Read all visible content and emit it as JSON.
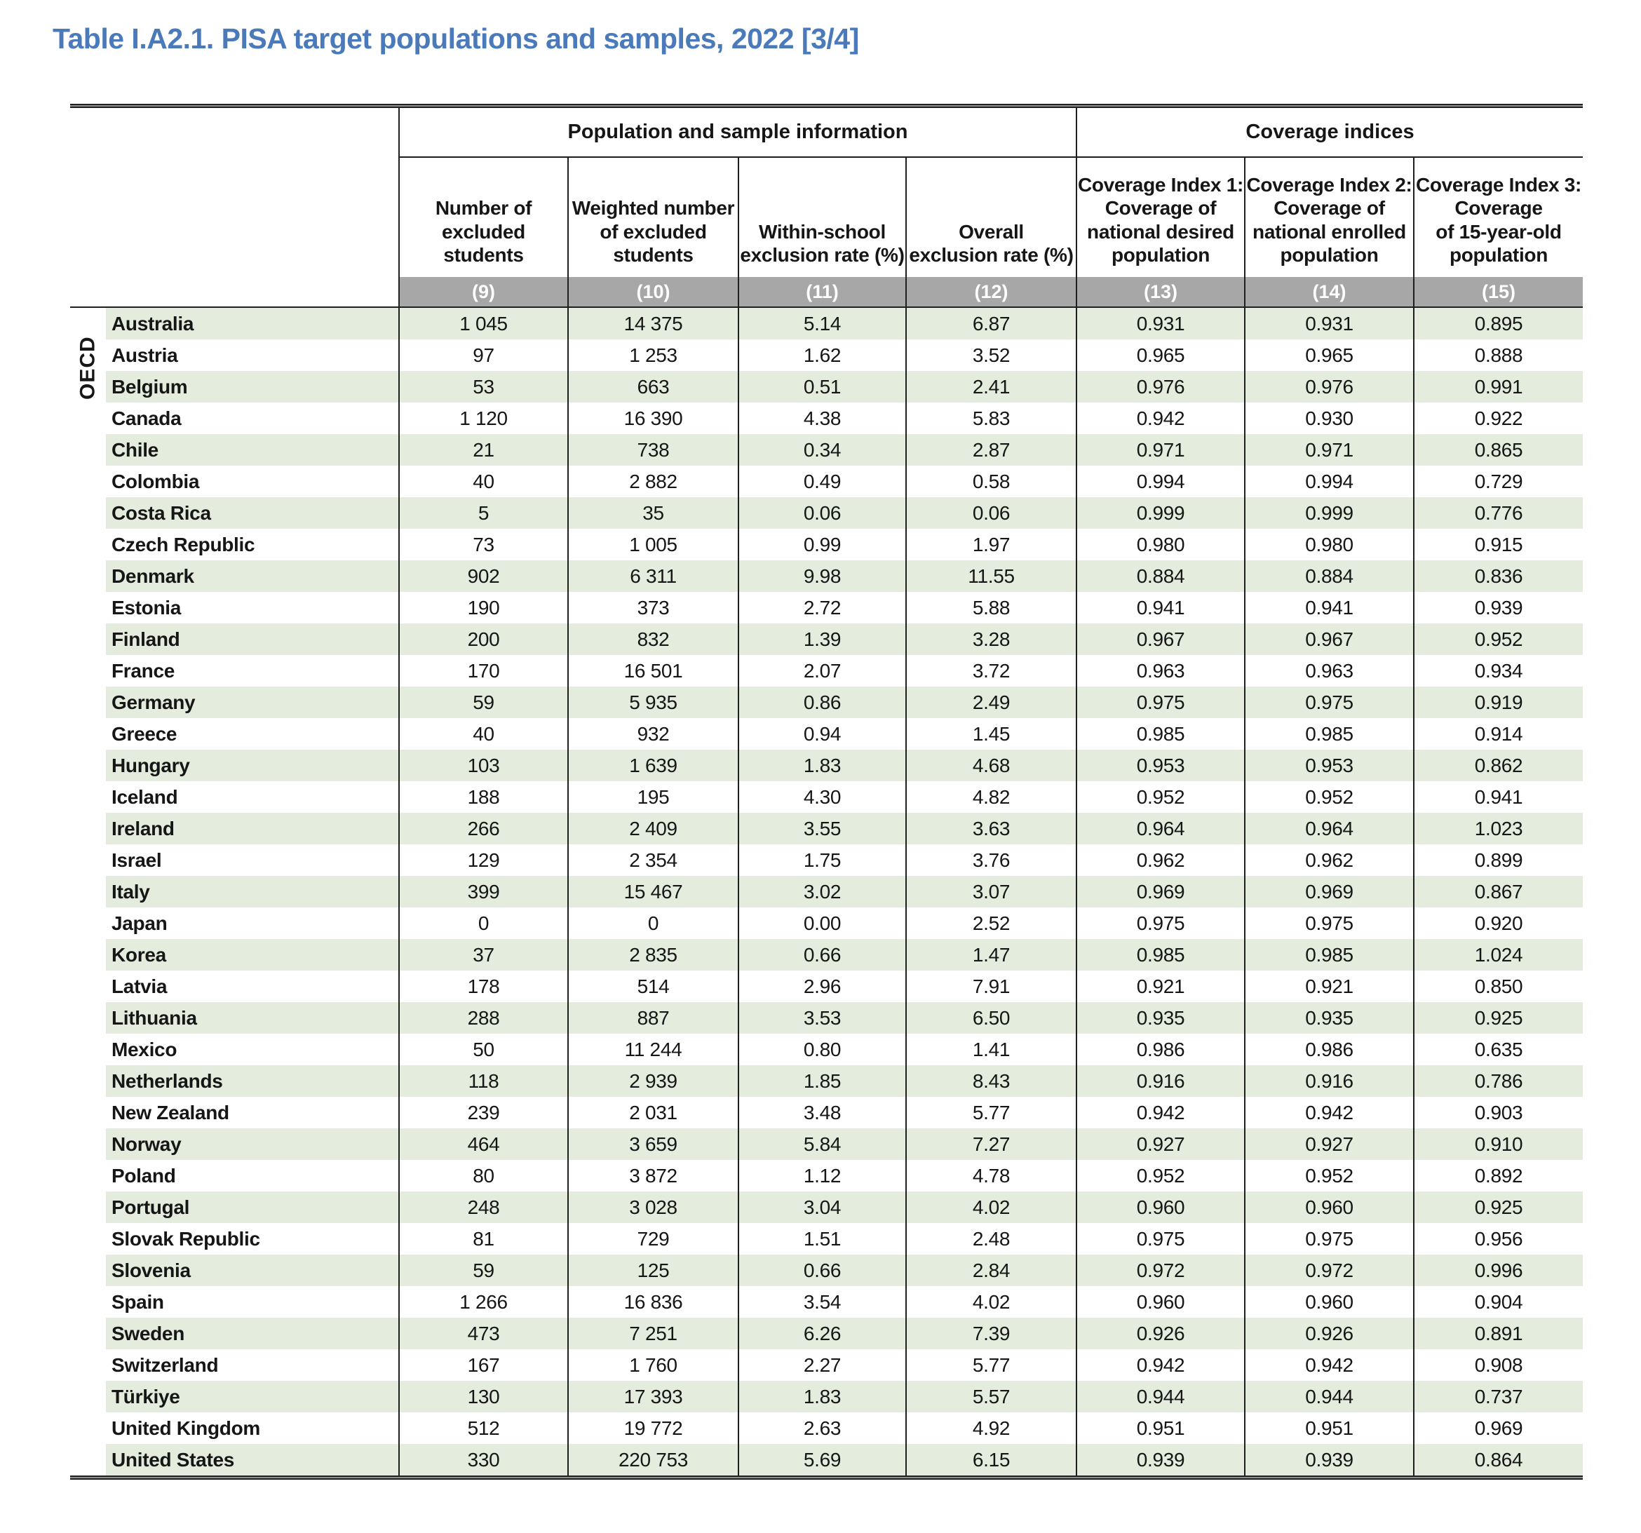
{
  "title": "Table I.A2.1. PISA target populations and samples, 2022 [3/4]",
  "colors": {
    "title_blue": "#4a7ab9",
    "row_green": "#e3ecdd",
    "band_gray": "#a7a7a7",
    "line_black": "#1f1f1f"
  },
  "table": {
    "row_group_label": "OECD",
    "group_headers": [
      {
        "label": "Population and sample information",
        "span": 4
      },
      {
        "label": "Coverage indices",
        "span": 3
      }
    ],
    "columns": [
      {
        "header": "Number of\nexcluded\nstudents",
        "number": "(9)"
      },
      {
        "header": "Weighted number\nof excluded\nstudents",
        "number": "(10)"
      },
      {
        "header": "Within-school\nexclusion rate (%)",
        "number": "(11)"
      },
      {
        "header": "Overall\nexclusion rate (%)",
        "number": "(12)"
      },
      {
        "header": "Coverage Index 1:\nCoverage of\nnational desired\npopulation",
        "number": "(13)"
      },
      {
        "header": "Coverage Index 2:\nCoverage of\nnational enrolled\npopulation",
        "number": "(14)"
      },
      {
        "header": "Coverage Index 3:\nCoverage\nof 15-year-old\npopulation",
        "number": "(15)"
      }
    ],
    "rows": [
      {
        "country": "Australia",
        "values": [
          "1 045",
          "14 375",
          "5.14",
          "6.87",
          "0.931",
          "0.931",
          "0.895"
        ]
      },
      {
        "country": "Austria",
        "values": [
          "97",
          "1 253",
          "1.62",
          "3.52",
          "0.965",
          "0.965",
          "0.888"
        ]
      },
      {
        "country": "Belgium",
        "values": [
          "53",
          "663",
          "0.51",
          "2.41",
          "0.976",
          "0.976",
          "0.991"
        ]
      },
      {
        "country": "Canada",
        "values": [
          "1 120",
          "16 390",
          "4.38",
          "5.83",
          "0.942",
          "0.930",
          "0.922"
        ]
      },
      {
        "country": "Chile",
        "values": [
          "21",
          "738",
          "0.34",
          "2.87",
          "0.971",
          "0.971",
          "0.865"
        ]
      },
      {
        "country": "Colombia",
        "values": [
          "40",
          "2 882",
          "0.49",
          "0.58",
          "0.994",
          "0.994",
          "0.729"
        ]
      },
      {
        "country": "Costa Rica",
        "values": [
          "5",
          "35",
          "0.06",
          "0.06",
          "0.999",
          "0.999",
          "0.776"
        ]
      },
      {
        "country": "Czech Republic",
        "values": [
          "73",
          "1 005",
          "0.99",
          "1.97",
          "0.980",
          "0.980",
          "0.915"
        ]
      },
      {
        "country": "Denmark",
        "values": [
          "902",
          "6 311",
          "9.98",
          "11.55",
          "0.884",
          "0.884",
          "0.836"
        ]
      },
      {
        "country": "Estonia",
        "values": [
          "190",
          "373",
          "2.72",
          "5.88",
          "0.941",
          "0.941",
          "0.939"
        ]
      },
      {
        "country": "Finland",
        "values": [
          "200",
          "832",
          "1.39",
          "3.28",
          "0.967",
          "0.967",
          "0.952"
        ]
      },
      {
        "country": "France",
        "values": [
          "170",
          "16 501",
          "2.07",
          "3.72",
          "0.963",
          "0.963",
          "0.934"
        ]
      },
      {
        "country": "Germany",
        "values": [
          "59",
          "5 935",
          "0.86",
          "2.49",
          "0.975",
          "0.975",
          "0.919"
        ]
      },
      {
        "country": "Greece",
        "values": [
          "40",
          "932",
          "0.94",
          "1.45",
          "0.985",
          "0.985",
          "0.914"
        ]
      },
      {
        "country": "Hungary",
        "values": [
          "103",
          "1 639",
          "1.83",
          "4.68",
          "0.953",
          "0.953",
          "0.862"
        ]
      },
      {
        "country": "Iceland",
        "values": [
          "188",
          "195",
          "4.30",
          "4.82",
          "0.952",
          "0.952",
          "0.941"
        ]
      },
      {
        "country": "Ireland",
        "values": [
          "266",
          "2 409",
          "3.55",
          "3.63",
          "0.964",
          "0.964",
          "1.023"
        ]
      },
      {
        "country": "Israel",
        "values": [
          "129",
          "2 354",
          "1.75",
          "3.76",
          "0.962",
          "0.962",
          "0.899"
        ]
      },
      {
        "country": "Italy",
        "values": [
          "399",
          "15 467",
          "3.02",
          "3.07",
          "0.969",
          "0.969",
          "0.867"
        ]
      },
      {
        "country": "Japan",
        "values": [
          "0",
          "0",
          "0.00",
          "2.52",
          "0.975",
          "0.975",
          "0.920"
        ]
      },
      {
        "country": "Korea",
        "values": [
          "37",
          "2 835",
          "0.66",
          "1.47",
          "0.985",
          "0.985",
          "1.024"
        ]
      },
      {
        "country": "Latvia",
        "values": [
          "178",
          "514",
          "2.96",
          "7.91",
          "0.921",
          "0.921",
          "0.850"
        ]
      },
      {
        "country": "Lithuania",
        "values": [
          "288",
          "887",
          "3.53",
          "6.50",
          "0.935",
          "0.935",
          "0.925"
        ]
      },
      {
        "country": "Mexico",
        "values": [
          "50",
          "11 244",
          "0.80",
          "1.41",
          "0.986",
          "0.986",
          "0.635"
        ]
      },
      {
        "country": "Netherlands",
        "values": [
          "118",
          "2 939",
          "1.85",
          "8.43",
          "0.916",
          "0.916",
          "0.786"
        ]
      },
      {
        "country": "New Zealand",
        "values": [
          "239",
          "2 031",
          "3.48",
          "5.77",
          "0.942",
          "0.942",
          "0.903"
        ]
      },
      {
        "country": "Norway",
        "values": [
          "464",
          "3 659",
          "5.84",
          "7.27",
          "0.927",
          "0.927",
          "0.910"
        ]
      },
      {
        "country": "Poland",
        "values": [
          "80",
          "3 872",
          "1.12",
          "4.78",
          "0.952",
          "0.952",
          "0.892"
        ]
      },
      {
        "country": "Portugal",
        "values": [
          "248",
          "3 028",
          "3.04",
          "4.02",
          "0.960",
          "0.960",
          "0.925"
        ]
      },
      {
        "country": "Slovak Republic",
        "values": [
          "81",
          "729",
          "1.51",
          "2.48",
          "0.975",
          "0.975",
          "0.956"
        ]
      },
      {
        "country": "Slovenia",
        "values": [
          "59",
          "125",
          "0.66",
          "2.84",
          "0.972",
          "0.972",
          "0.996"
        ]
      },
      {
        "country": "Spain",
        "values": [
          "1 266",
          "16 836",
          "3.54",
          "4.02",
          "0.960",
          "0.960",
          "0.904"
        ]
      },
      {
        "country": "Sweden",
        "values": [
          "473",
          "7 251",
          "6.26",
          "7.39",
          "0.926",
          "0.926",
          "0.891"
        ]
      },
      {
        "country": "Switzerland",
        "values": [
          "167",
          "1 760",
          "2.27",
          "5.77",
          "0.942",
          "0.942",
          "0.908"
        ]
      },
      {
        "country": "Türkiye",
        "values": [
          "130",
          "17 393",
          "1.83",
          "5.57",
          "0.944",
          "0.944",
          "0.737"
        ]
      },
      {
        "country": "United Kingdom",
        "values": [
          "512",
          "19 772",
          "2.63",
          "4.92",
          "0.951",
          "0.951",
          "0.969"
        ]
      },
      {
        "country": "United States",
        "values": [
          "330",
          "220 753",
          "5.69",
          "6.15",
          "0.939",
          "0.939",
          "0.864"
        ]
      }
    ]
  }
}
